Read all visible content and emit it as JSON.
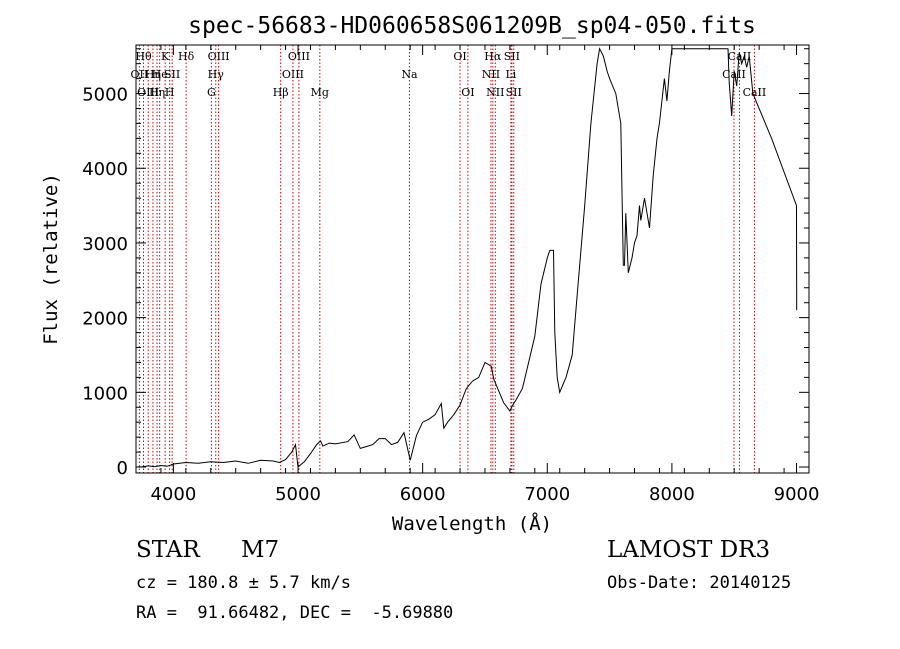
{
  "chart_data": {
    "type": "line",
    "title": "spec-56683-HD060658S061209B_sp04-050.fits",
    "xlabel": "Wavelength (Å)",
    "ylabel": "Flux (relative)",
    "xlim": [
      3700,
      9100
    ],
    "ylim": [
      -80,
      5650
    ],
    "xticks": [
      4000,
      5000,
      6000,
      7000,
      8000,
      9000
    ],
    "yticks": [
      0,
      1000,
      2000,
      3000,
      4000,
      5000
    ],
    "colors": {
      "line": "#000000",
      "marker": "#cc0000",
      "text": "#000000"
    },
    "series": [
      {
        "name": "spectrum",
        "x": [
          3700,
          3750,
          3800,
          3850,
          3900,
          3950,
          4000,
          4050,
          4100,
          4200,
          4300,
          4400,
          4500,
          4600,
          4700,
          4800,
          4850,
          4900,
          4950,
          4980,
          5000,
          5050,
          5100,
          5150,
          5180,
          5200,
          5250,
          5300,
          5400,
          5450,
          5500,
          5600,
          5650,
          5700,
          5750,
          5800,
          5850,
          5900,
          5950,
          6000,
          6050,
          6100,
          6150,
          6170,
          6200,
          6250,
          6300,
          6350,
          6400,
          6450,
          6500,
          6550,
          6570,
          6600,
          6650,
          6700,
          6720,
          6750,
          6800,
          6850,
          6900,
          6950,
          7000,
          7020,
          7050,
          7060,
          7080,
          7100,
          7150,
          7200,
          7250,
          7300,
          7350,
          7400,
          7420,
          7450,
          7480,
          7500,
          7550,
          7590,
          7600,
          7610,
          7620,
          7630,
          7650,
          7680,
          7700,
          7720,
          7740,
          7750,
          7780,
          7800,
          7820,
          7850,
          7880,
          7900,
          7940,
          7960,
          7980,
          8000,
          8150,
          8300,
          8450,
          8460,
          8480,
          8500,
          8520,
          8540,
          8560,
          8580,
          8600,
          8620,
          8650,
          8800,
          9000,
          9001
        ],
        "values": [
          0,
          5,
          15,
          5,
          20,
          10,
          40,
          50,
          60,
          50,
          70,
          60,
          80,
          50,
          90,
          80,
          60,
          100,
          200,
          300,
          0,
          70,
          180,
          300,
          350,
          280,
          320,
          310,
          340,
          430,
          250,
          300,
          380,
          380,
          300,
          330,
          460,
          90,
          420,
          600,
          640,
          700,
          850,
          520,
          600,
          700,
          830,
          1050,
          1150,
          1200,
          1400,
          1350,
          1180,
          1060,
          860,
          750,
          820,
          900,
          1050,
          1400,
          1750,
          2450,
          2800,
          2900,
          2900,
          1800,
          1200,
          1000,
          1200,
          1500,
          2500,
          3500,
          4600,
          5400,
          5600,
          5500,
          5300,
          5200,
          5000,
          4600,
          3600,
          2700,
          2700,
          3400,
          2600,
          2800,
          3000,
          3100,
          3500,
          3300,
          3600,
          3400,
          3200,
          3900,
          4400,
          4600,
          5200,
          4900,
          5300,
          5600,
          5600,
          5600,
          5600,
          5150,
          4700,
          5300,
          5100,
          5550,
          5400,
          5500,
          5350,
          5500,
          5000,
          4400,
          3500,
          2100
        ]
      }
    ],
    "lines": [
      {
        "wl": 3727,
        "row1": "",
        "row2": "OII",
        "row3": ""
      },
      {
        "wl": 3760,
        "row1": "Hθ",
        "row2": "",
        "row3": ""
      },
      {
        "wl": 3798,
        "row1": "",
        "row2": "",
        "row3": "OIII"
      },
      {
        "wl": 3836,
        "row1": "",
        "row2": "Hη",
        "row3": ""
      },
      {
        "wl": 3869,
        "row1": "",
        "row2": "",
        "row3": "Hη"
      },
      {
        "wl": 3890,
        "row1": "",
        "row2": "He",
        "row3": ""
      },
      {
        "wl": 3934,
        "row1": "K",
        "row2": "",
        "row3": ""
      },
      {
        "wl": 3970,
        "row1": "",
        "row2": "",
        "row3": "H"
      },
      {
        "wl": 3990,
        "row1": "",
        "row2": "SII",
        "row3": ""
      },
      {
        "wl": 4102,
        "row1": "Hδ",
        "row2": "",
        "row3": ""
      },
      {
        "wl": 4305,
        "row1": "",
        "row2": "",
        "row3": "G"
      },
      {
        "wl": 4340,
        "row1": "",
        "row2": "Hγ",
        "row3": ""
      },
      {
        "wl": 4363,
        "row1": "OIII",
        "row2": "",
        "row3": ""
      },
      {
        "wl": 4861,
        "row1": "",
        "row2": "",
        "row3": "Hβ"
      },
      {
        "wl": 4959,
        "row1": "",
        "row2": "OIII",
        "row3": ""
      },
      {
        "wl": 5007,
        "row1": "OIII",
        "row2": "",
        "row3": ""
      },
      {
        "wl": 5175,
        "row1": "",
        "row2": "",
        "row3": "Mg"
      },
      {
        "wl": 5894,
        "row1": "",
        "row2": "Na",
        "row3": ""
      },
      {
        "wl": 6300,
        "row1": "OI",
        "row2": "",
        "row3": ""
      },
      {
        "wl": 6363,
        "row1": "",
        "row2": "",
        "row3": "OI"
      },
      {
        "wl": 6548,
        "row1": "",
        "row2": "NII",
        "row3": ""
      },
      {
        "wl": 6563,
        "row1": "Hα",
        "row2": "",
        "row3": ""
      },
      {
        "wl": 6583,
        "row1": "",
        "row2": "",
        "row3": "NII"
      },
      {
        "wl": 6708,
        "row1": "",
        "row2": "Li",
        "row3": ""
      },
      {
        "wl": 6716,
        "row1": "SII",
        "row2": "",
        "row3": ""
      },
      {
        "wl": 6731,
        "row1": "",
        "row2": "",
        "row3": "SII"
      },
      {
        "wl": 8498,
        "row1": "",
        "row2": "CaII",
        "row3": ""
      },
      {
        "wl": 8542,
        "row1": "CaII",
        "row2": "",
        "row3": ""
      },
      {
        "wl": 8662,
        "row1": "",
        "row2": "",
        "row3": "CaII"
      }
    ]
  },
  "info": {
    "class": "STAR",
    "subclass": "M7",
    "survey": "LAMOST DR3",
    "cz": "cz = 180.8 ± 5.7 km/s",
    "obs_date": "Obs-Date: 20140125",
    "radec": "RA =  91.66482, DEC =  -5.69880"
  }
}
